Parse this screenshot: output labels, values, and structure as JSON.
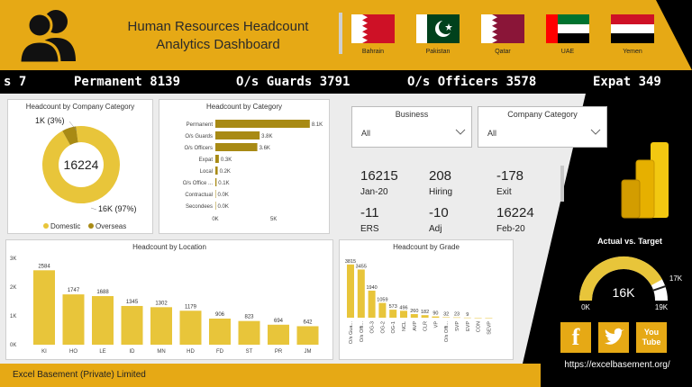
{
  "header": {
    "title_line1": "Human Resources Headcount",
    "title_line2": "Analytics Dashboard",
    "flags": [
      {
        "label": "Bahrain",
        "icon": "bahrain-flag-icon"
      },
      {
        "label": "Pakistan",
        "icon": "pakistan-flag-icon"
      },
      {
        "label": "Qatar",
        "icon": "qatar-flag-icon"
      },
      {
        "label": "UAE",
        "icon": "uae-flag-icon"
      },
      {
        "label": "Yemen",
        "icon": "yemen-flag-icon"
      }
    ]
  },
  "ticker": [
    "s 7",
    "Permanent 8139",
    "O/s Guards 3791",
    "O/s Officers 3578",
    "Expat 349"
  ],
  "slicers": {
    "business": {
      "title": "Business",
      "value": "All"
    },
    "company_category": {
      "title": "Company Category",
      "value": "All"
    }
  },
  "kpis": [
    {
      "value": "16215",
      "label": "Jan-20"
    },
    {
      "value": "208",
      "label": "Hiring"
    },
    {
      "value": "-178",
      "label": "Exit"
    },
    {
      "value": "-11",
      "label": "ERS"
    },
    {
      "value": "-10",
      "label": "Adj"
    },
    {
      "value": "16224",
      "label": "Feb-20"
    }
  ],
  "gauge": {
    "title": "Actual vs. Target",
    "value": "16K",
    "min": "0K",
    "max": "19K",
    "target": "17K",
    "fraction": 0.84
  },
  "footer": {
    "company": "Excel Basement (Private) Limited",
    "url": "https://excelbasement.org/"
  },
  "social": [
    {
      "name": "facebook-icon",
      "glyph": "f"
    },
    {
      "name": "twitter-icon",
      "glyph": "t"
    },
    {
      "name": "youtube-icon",
      "glyph": "You Tube"
    }
  ],
  "chart_data": [
    {
      "type": "pie",
      "title": "Headcount by Company Category",
      "center_label": "16224",
      "slices": [
        {
          "name": "Domestic",
          "value": 16,
          "label": "16K (97%)"
        },
        {
          "name": "Overseas",
          "value": 1,
          "label": "1K (3%)"
        }
      ],
      "legend": [
        "Domestic",
        "Overseas"
      ],
      "colors": [
        "#e8c53a",
        "#a88a14"
      ]
    },
    {
      "type": "bar",
      "title": "Headcount by Category",
      "categories": [
        "Permanent",
        "O/s Guards",
        "O/s Officers",
        "Expat",
        "Local",
        "O/s Office ...",
        "Contractual",
        "Secondees"
      ],
      "values": [
        8.1,
        3.8,
        3.6,
        0.3,
        0.2,
        0.1,
        0.0,
        0.0
      ],
      "labels": [
        "8.1K",
        "3.8K",
        "3.6K",
        "0.3K",
        "0.2K",
        "0.1K",
        "0.0K",
        "0.0K"
      ],
      "xticks": [
        "0K",
        "5K"
      ],
      "xlim": [
        0,
        8.5
      ],
      "color": "#a88a14"
    },
    {
      "type": "bar",
      "title": "Headcount by Location",
      "categories": [
        "KI",
        "HO",
        "LE",
        "ID",
        "MN",
        "HD",
        "FD",
        "ST",
        "PR",
        "JM"
      ],
      "values": [
        2584,
        1747,
        1688,
        1345,
        1302,
        1179,
        906,
        823,
        694,
        642
      ],
      "yticks": [
        "3K",
        "2K",
        "1K",
        "0K"
      ],
      "ylim": [
        0,
        3000
      ],
      "color": "#e8c53a"
    },
    {
      "type": "bar",
      "title": "Headcount by Grade",
      "categories": [
        "O/s Gua...",
        "O/s Offi...",
        "OG-3",
        "OG-2",
        "OG-1",
        "NCL",
        "AVP",
        "CLR",
        "VP",
        "O/s Offi...",
        "SVP",
        "EVP",
        "CON",
        "SEVP"
      ],
      "values": [
        3815,
        3455,
        1940,
        1059,
        573,
        496,
        260,
        182,
        90,
        32,
        23,
        9,
        0,
        0
      ],
      "labels": [
        "3815",
        "3455",
        "1940",
        "1059",
        "573",
        "496",
        "260",
        "182",
        "90",
        "32",
        "23",
        "9",
        "",
        ""
      ],
      "ylim": [
        0,
        4000
      ],
      "color": "#e8c53a"
    }
  ]
}
